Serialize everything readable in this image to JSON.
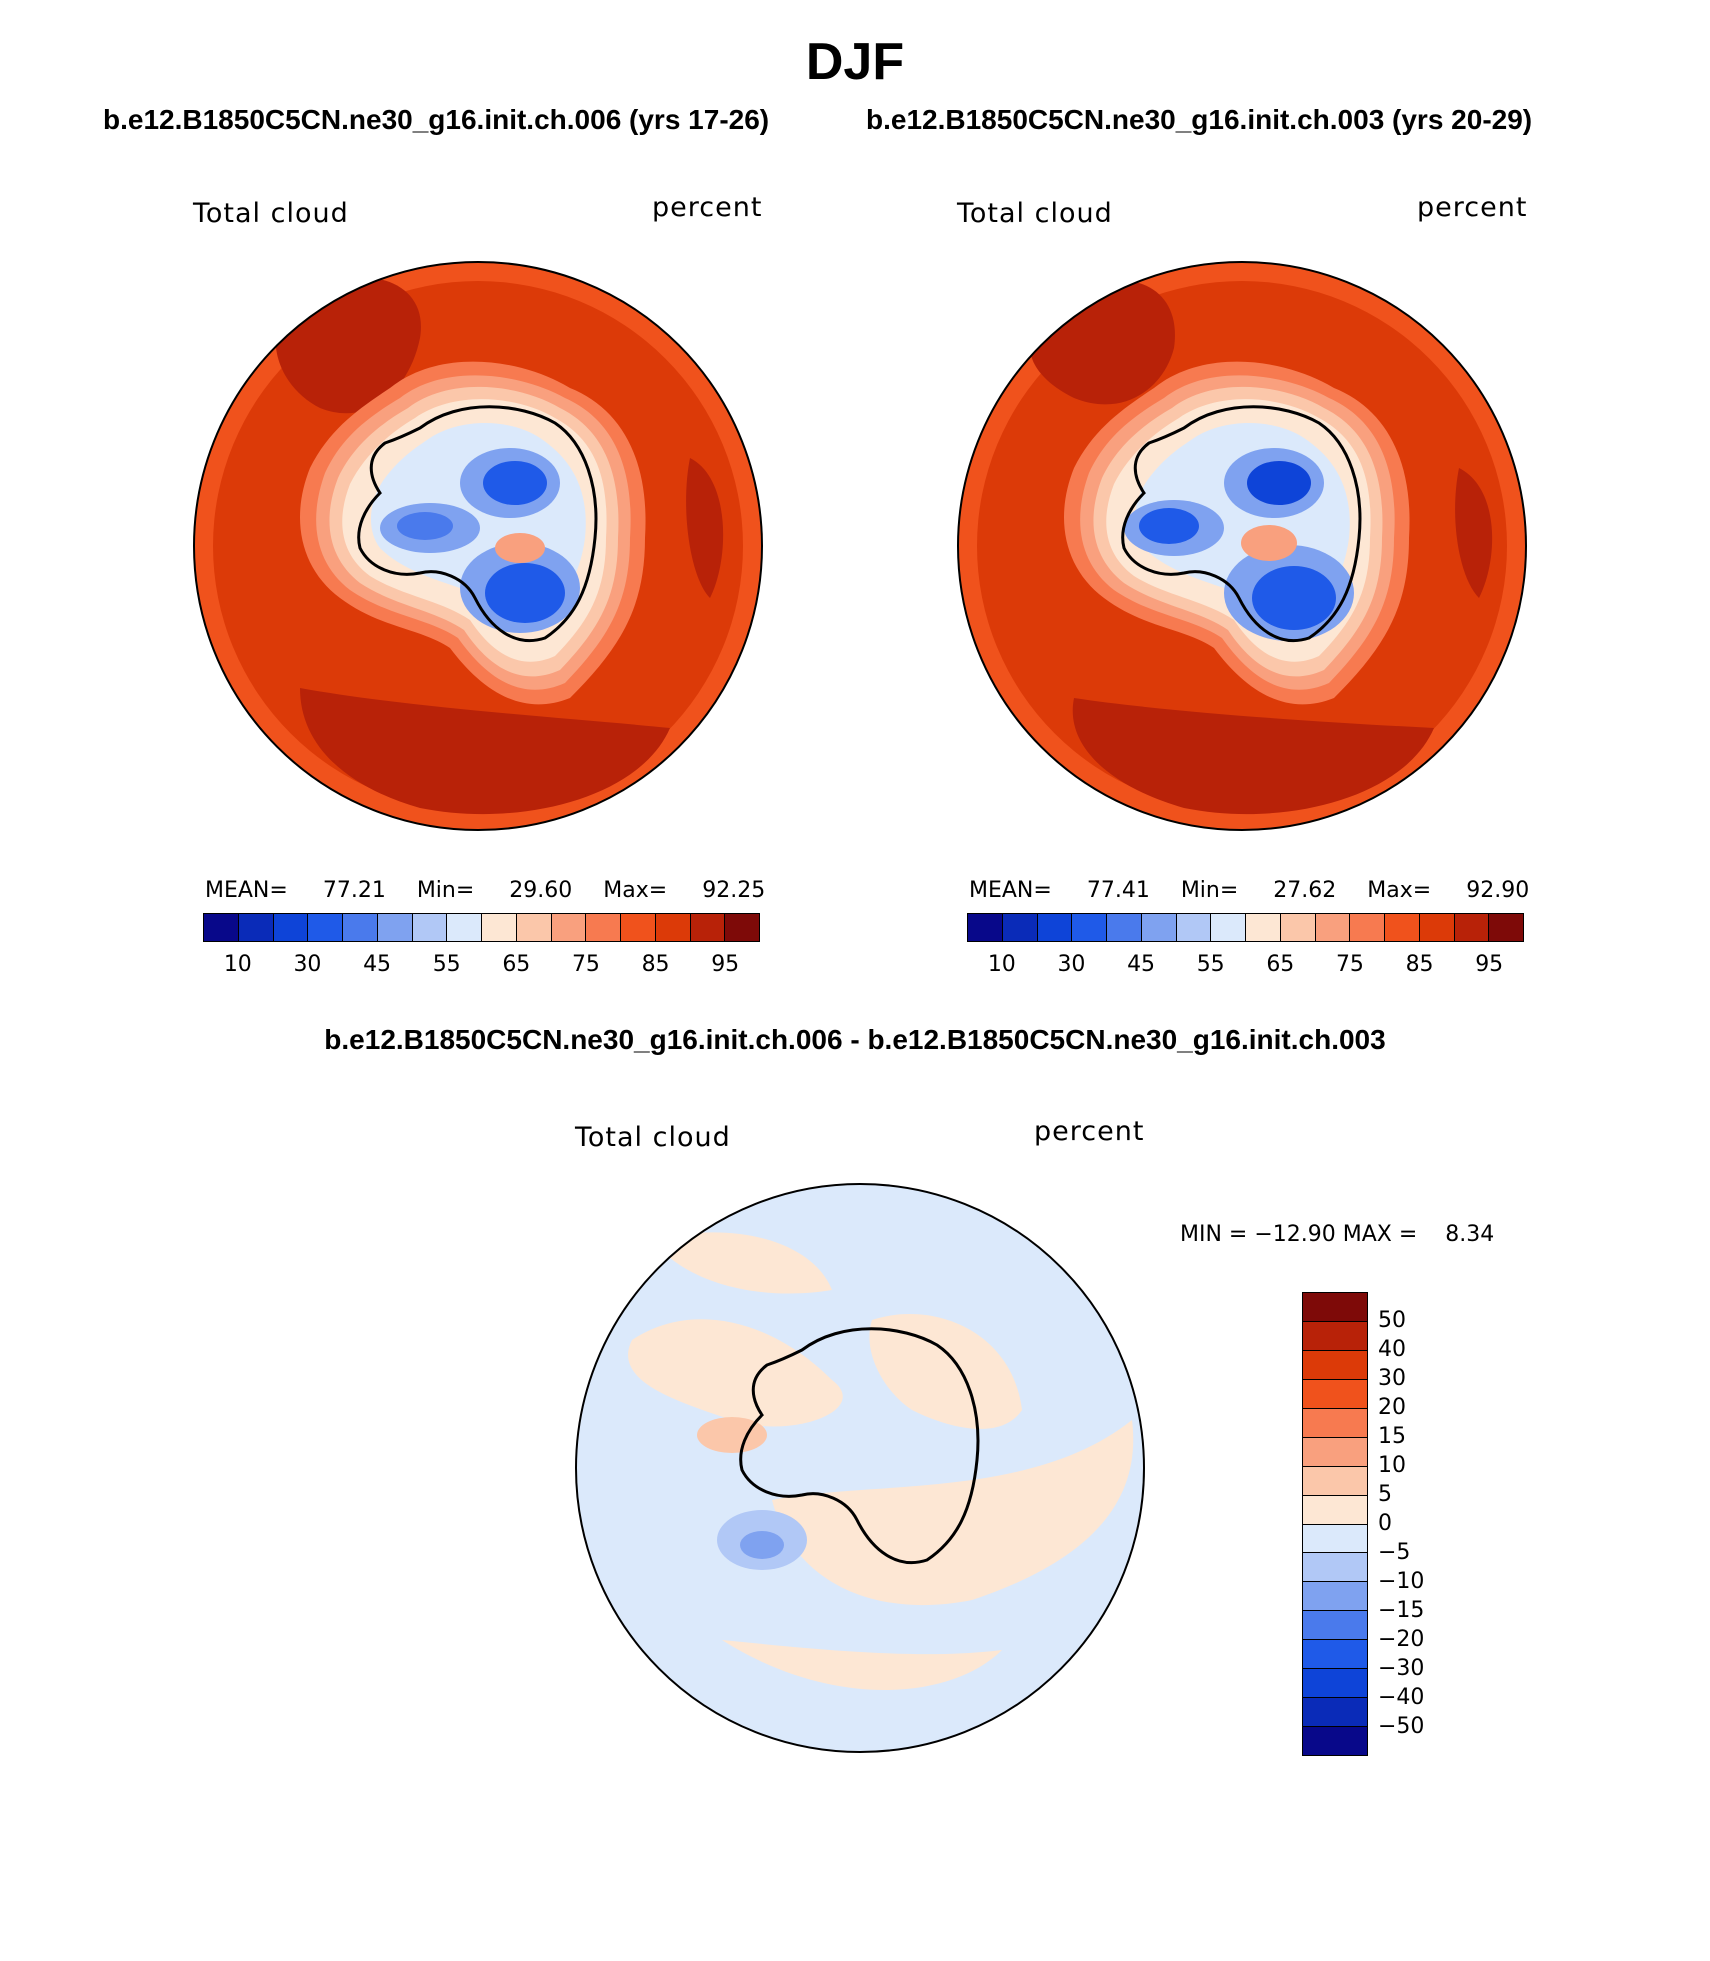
{
  "title": "DJF",
  "panels": [
    {
      "subtitle": "b.e12.B1850C5CN.ne30_g16.init.ch.006 (yrs 17-26)",
      "variable": "Total cloud",
      "units": "percent",
      "stats": {
        "mean_label": "MEAN=",
        "mean": "77.21",
        "min_label": "Min=",
        "min": "29.60",
        "max_label": "Max=",
        "max": "92.25"
      },
      "colorbar_ticks": [
        "10",
        "30",
        "45",
        "55",
        "65",
        "75",
        "85",
        "95"
      ]
    },
    {
      "subtitle": "b.e12.B1850C5CN.ne30_g16.init.ch.003 (yrs 20-29)",
      "variable": "Total cloud",
      "units": "percent",
      "stats": {
        "mean_label": "MEAN=",
        "mean": "77.41",
        "min_label": "Min=",
        "min": "27.62",
        "max_label": "Max=",
        "max": "92.90"
      },
      "colorbar_ticks": [
        "10",
        "30",
        "45",
        "55",
        "65",
        "75",
        "85",
        "95"
      ]
    }
  ],
  "difference": {
    "title": "b.e12.B1850C5CN.ne30_g16.init.ch.006 - b.e12.B1850C5CN.ne30_g16.init.ch.003",
    "variable": "Total cloud",
    "units": "percent",
    "min_max_text": "MIN = −12.90 MAX =    8.34",
    "colorbar_ticks": [
      "50",
      "40",
      "30",
      "20",
      "15",
      "10",
      "5",
      "0",
      "−5",
      "−10",
      "−15",
      "−20",
      "−30",
      "−40",
      "−50"
    ]
  },
  "colors": {
    "scale16": [
      "#08088a",
      "#0a2bb8",
      "#0e44d8",
      "#1f5ae8",
      "#4a7aec",
      "#7fa2f0",
      "#b1c8f6",
      "#dbe9fb",
      "#fde7d4",
      "#fbc7aa",
      "#f9a07e",
      "#f77a50",
      "#f0521c",
      "#dc3a08",
      "#b82208",
      "#7e0a08"
    ],
    "ocean_high": "#b82208",
    "ocean_mid": "#dc3a08",
    "ocean_edge": "#f0521c",
    "coast": "#000000",
    "diff_pos": "#fde7d4",
    "diff_neg": "#dbe9fb"
  }
}
